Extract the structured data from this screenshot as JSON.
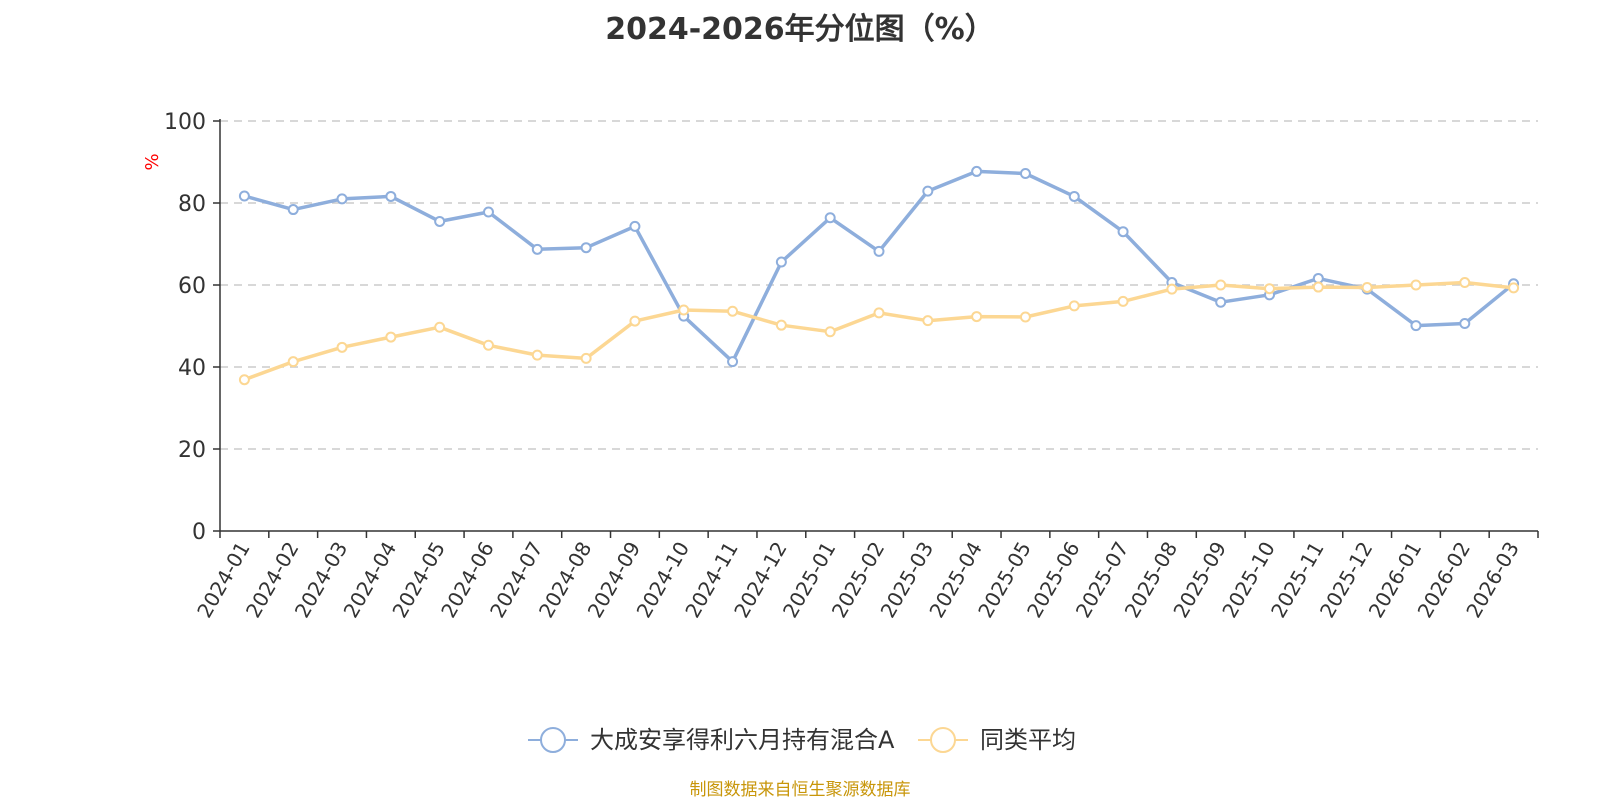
{
  "chart_data": {
    "type": "line",
    "title": "2024-2026年分位图（%）",
    "ylabel": "%",
    "xlabel": "",
    "ylim": [
      0,
      100
    ],
    "yticks": [
      0,
      20,
      40,
      60,
      80,
      100
    ],
    "grid": true,
    "legend_position": "bottom-center",
    "categories": [
      "2024-01",
      "2024-02",
      "2024-03",
      "2024-04",
      "2024-05",
      "2024-06",
      "2024-07",
      "2024-08",
      "2024-09",
      "2024-10",
      "2024-11",
      "2024-12",
      "2025-01",
      "2025-02",
      "2025-03",
      "2025-04",
      "2025-05",
      "2025-06",
      "2025-07",
      "2025-08",
      "2025-09",
      "2025-10",
      "2025-11",
      "2025-12",
      "2026-01",
      "2026-02",
      "2026-03"
    ],
    "series": [
      {
        "name": "大成安享得利六月持有混合A",
        "color": "#8eaedc",
        "values": [
          81.7,
          78.4,
          81.0,
          81.6,
          75.5,
          77.8,
          68.7,
          69.1,
          74.3,
          52.4,
          41.3,
          65.6,
          76.4,
          68.2,
          82.9,
          87.7,
          87.2,
          81.6,
          73.0,
          60.6,
          55.8,
          57.6,
          61.6,
          59.0,
          50.1,
          50.6,
          60.3
        ]
      },
      {
        "name": "同类平均",
        "color": "#fcd793",
        "values": [
          36.9,
          41.3,
          44.8,
          47.3,
          49.7,
          45.3,
          42.9,
          42.1,
          51.2,
          53.9,
          53.6,
          50.2,
          48.6,
          53.2,
          51.3,
          52.3,
          52.2,
          54.9,
          56.0,
          59.0,
          60.0,
          59.1,
          59.5,
          59.4,
          60.0,
          60.6,
          59.3
        ]
      }
    ]
  },
  "source_note": "制图数据来自恒生聚源数据库",
  "source_note_color": "#c8960a",
  "ylabel_color": "#ff0000",
  "grid_color": "#cccccc",
  "axis_color": "#333333"
}
